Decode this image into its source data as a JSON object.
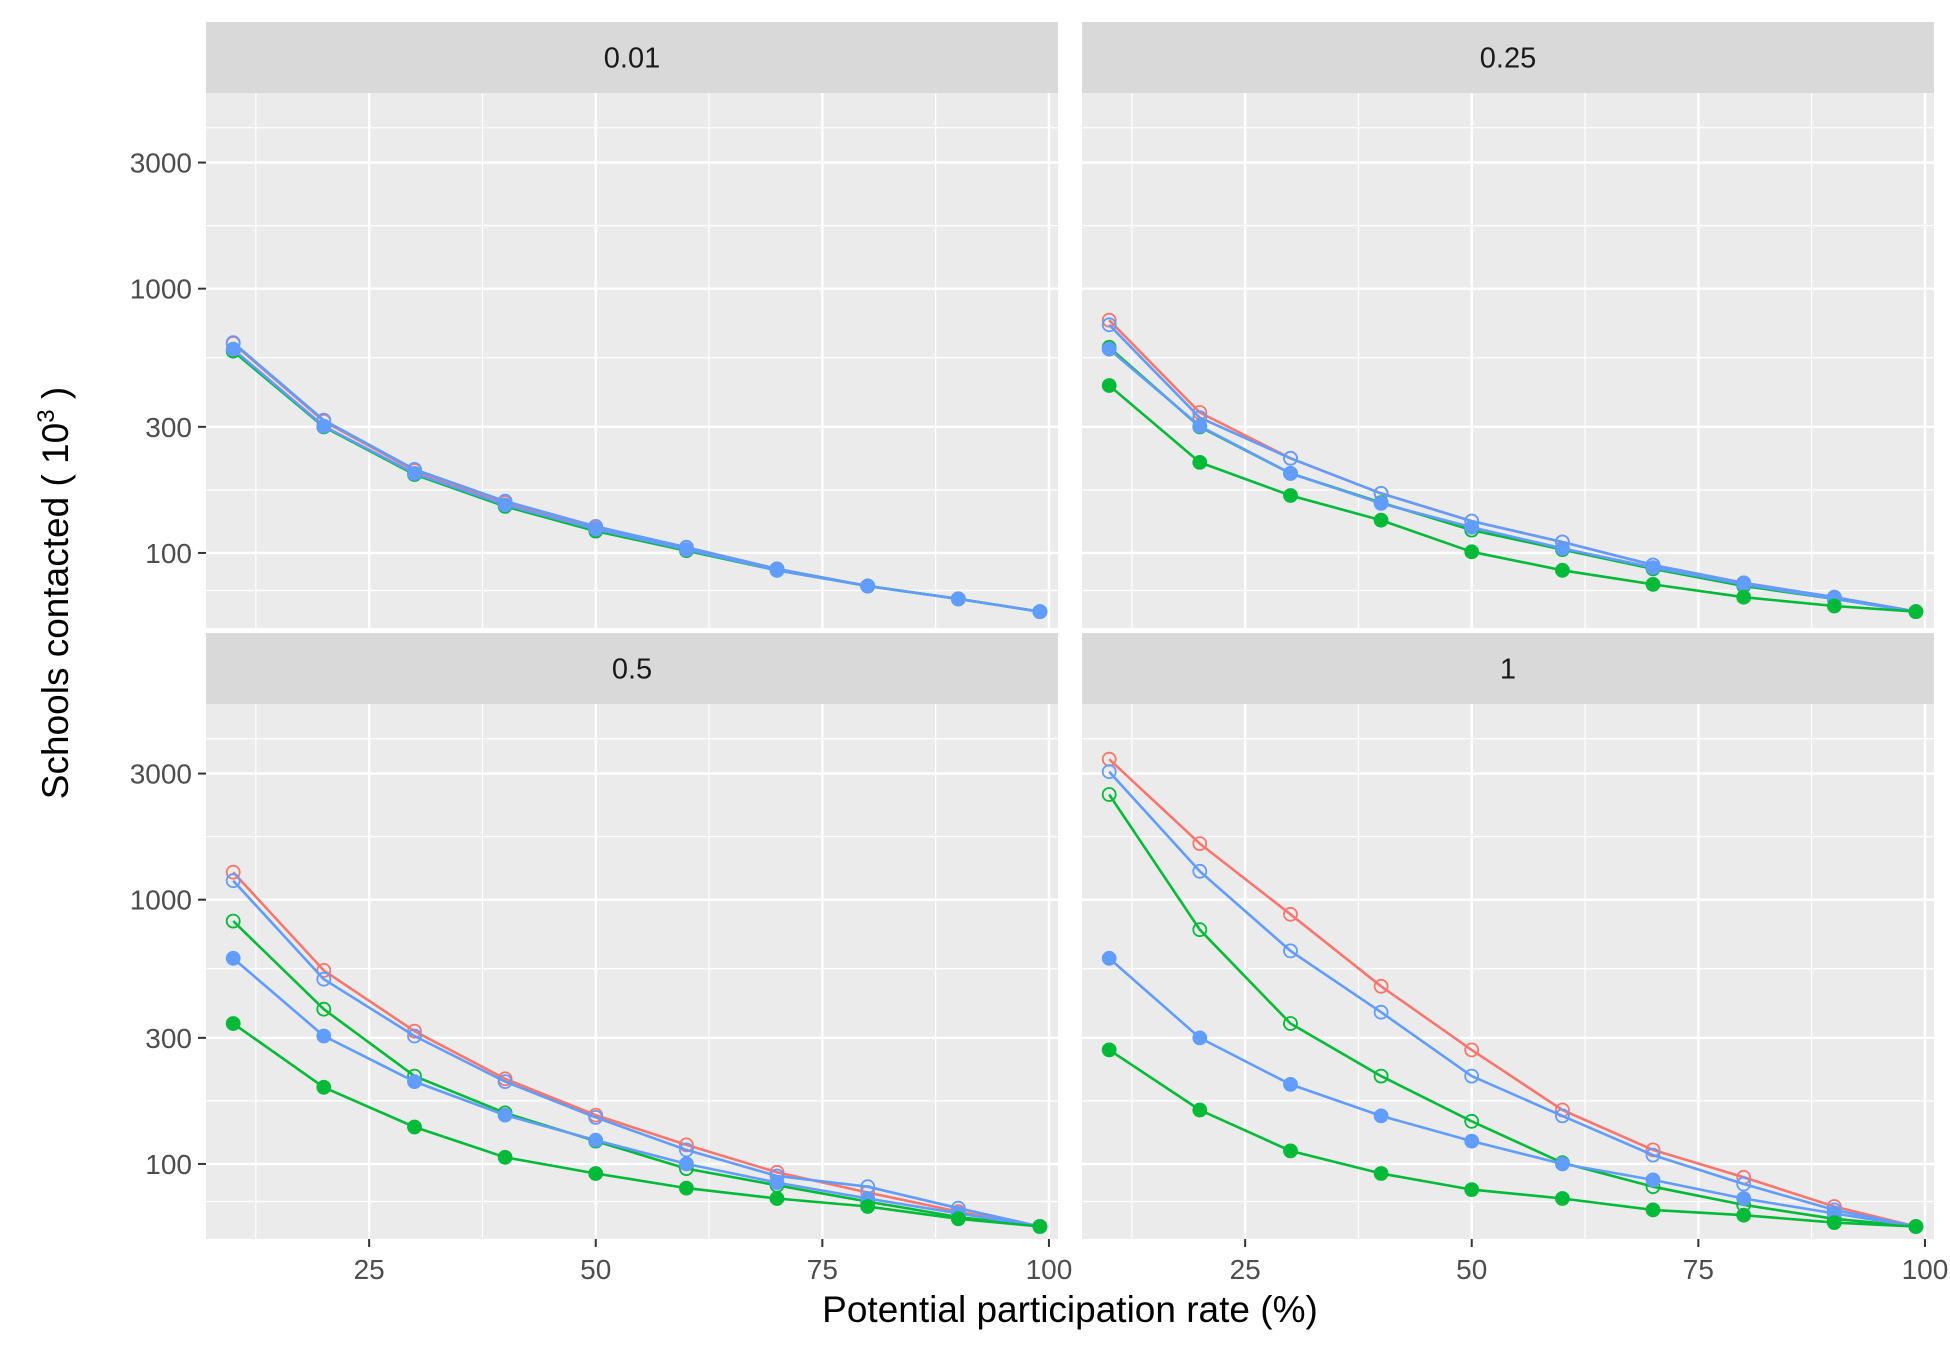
{
  "chart_data": {
    "type": "line",
    "xlabel": "Potential participation rate (%)",
    "ylabel": {
      "prefix": "Schools contacted ( 10",
      "exponent": "3",
      "suffix": " )"
    },
    "x_scale": "linear",
    "y_scale": "log10",
    "xlim": [
      7,
      101
    ],
    "ylim": [
      52,
      5500
    ],
    "x_ticks": [
      25,
      50,
      75,
      100
    ],
    "y_ticks": [
      100,
      300,
      1000,
      3000
    ],
    "grid": true,
    "legend": "none",
    "colors": {
      "red": "#F8766D",
      "green": "#00BA38",
      "blue": "#619CFF"
    },
    "x": [
      10,
      20,
      30,
      40,
      50,
      60,
      70,
      80,
      90,
      99
    ],
    "panels": [
      {
        "strip": "0.01",
        "series": [
          {
            "color": "red",
            "filled": false,
            "values": [
              620,
              315,
              205,
              155,
              125,
              105,
              87,
              75,
              67,
              60
            ]
          },
          {
            "color": "blue",
            "filled": false,
            "values": [
              625,
              318,
              207,
              157,
              126,
              105,
              87,
              75,
              67,
              60
            ]
          },
          {
            "color": "green",
            "filled": true,
            "values": [
              580,
              300,
              198,
              150,
              121,
              102,
              86,
              75,
              67,
              60
            ]
          },
          {
            "color": "blue",
            "filled": true,
            "values": [
              590,
              302,
              200,
              152,
              123,
              103,
              86,
              75,
              67,
              60
            ]
          }
        ]
      },
      {
        "strip": "0.25",
        "series": [
          {
            "color": "red",
            "filled": false,
            "values": [
              760,
              340,
              228,
              168,
              132,
              110,
              90,
              77,
              68,
              60
            ]
          },
          {
            "color": "blue",
            "filled": false,
            "values": [
              730,
              325,
              228,
              168,
              132,
              110,
              90,
              77,
              68,
              60
            ]
          },
          {
            "color": "green",
            "filled": false,
            "values": [
              600,
              300,
              200,
              155,
              122,
              103,
              87,
              75,
              67,
              60
            ]
          },
          {
            "color": "blue",
            "filled": true,
            "values": [
              590,
              302,
              200,
              154,
              125,
              104,
              88,
              76,
              67,
              60
            ]
          },
          {
            "color": "green",
            "filled": true,
            "values": [
              430,
              220,
              165,
              133,
              101,
              86,
              76,
              68,
              63,
              60
            ]
          }
        ]
      },
      {
        "strip": "0.5",
        "series": [
          {
            "color": "red",
            "filled": false,
            "values": [
              1270,
              540,
              318,
              210,
              153,
              118,
              93,
              78,
              66,
              58
            ]
          },
          {
            "color": "blue",
            "filled": false,
            "values": [
              1180,
              500,
              305,
              205,
              150,
              113,
              90,
              82,
              68,
              58
            ]
          },
          {
            "color": "green",
            "filled": false,
            "values": [
              830,
              385,
              215,
              156,
              122,
              96,
              83,
              72,
              63,
              58
            ]
          },
          {
            "color": "blue",
            "filled": true,
            "values": [
              600,
              305,
              205,
              153,
              123,
              100,
              85,
              74,
              65,
              58
            ]
          },
          {
            "color": "green",
            "filled": true,
            "values": [
              340,
              195,
              138,
              106,
              92,
              81,
              74,
              69,
              62,
              58
            ]
          }
        ]
      },
      {
        "strip": "1",
        "series": [
          {
            "color": "red",
            "filled": false,
            "values": [
              3400,
              1630,
              880,
              470,
              270,
              160,
              113,
              89,
              69,
              58
            ]
          },
          {
            "color": "blue",
            "filled": false,
            "values": [
              3050,
              1280,
              640,
              375,
              215,
              152,
              108,
              84,
              67,
              58
            ]
          },
          {
            "color": "green",
            "filled": false,
            "values": [
              2500,
              770,
              340,
              215,
              145,
              101,
              82,
              70,
              62,
              58
            ]
          },
          {
            "color": "blue",
            "filled": true,
            "values": [
              600,
              300,
              200,
              152,
              122,
              100,
              87,
              74,
              65,
              58
            ]
          },
          {
            "color": "green",
            "filled": true,
            "values": [
              270,
              160,
              112,
              92,
              80,
              74,
              67,
              64,
              60,
              58
            ]
          }
        ]
      }
    ]
  }
}
